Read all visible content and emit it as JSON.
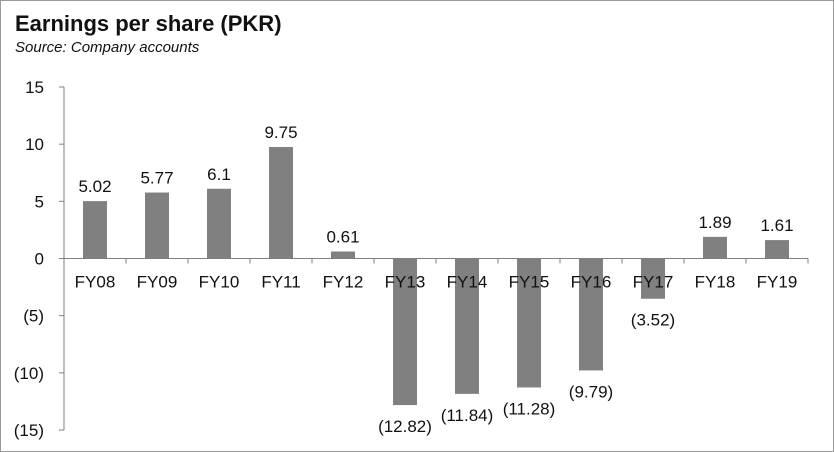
{
  "chart_data": {
    "type": "bar",
    "title": "Earnings per share (PKR)",
    "subtitle": "Source: Company accounts",
    "categories": [
      "FY08",
      "FY09",
      "FY10",
      "FY11",
      "FY12",
      "FY13",
      "FY14",
      "FY15",
      "FY16",
      "FY17",
      "FY18",
      "FY19"
    ],
    "values": [
      5.02,
      5.77,
      6.1,
      9.75,
      0.61,
      -12.82,
      -11.84,
      -11.28,
      -9.79,
      -3.52,
      1.89,
      1.61
    ],
    "data_labels": [
      "5.02",
      "5.77",
      "6.1",
      "9.75",
      "0.61",
      "(12.82)",
      "(11.84)",
      "(11.28)",
      "(9.79)",
      "(3.52)",
      "1.89",
      "1.61"
    ],
    "ylim": [
      -15,
      15
    ],
    "yticks": [
      15,
      10,
      5,
      0,
      -5,
      -10,
      -15
    ],
    "ytick_labels": [
      "15",
      "10",
      "5",
      "0",
      "(5)",
      "(10)",
      "(15)"
    ],
    "xlabel": "",
    "ylabel": "",
    "grid": false,
    "legend": "none",
    "bar_color": "#808080"
  }
}
